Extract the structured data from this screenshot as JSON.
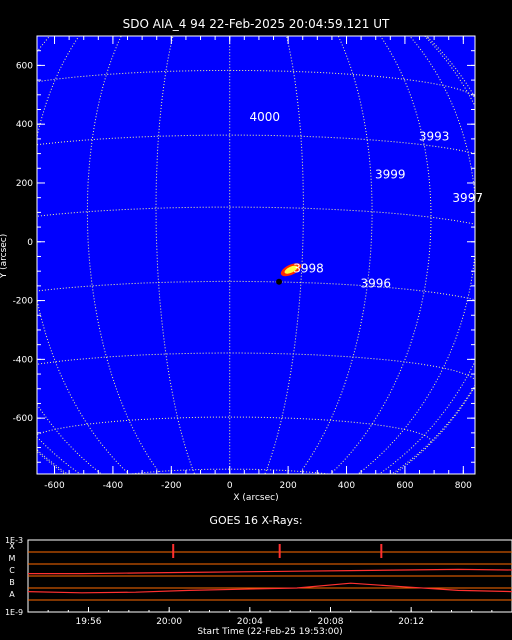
{
  "chart_data": [
    {
      "type": "scatter",
      "title": "SDO AIA_4 94 22-Feb-2025 20:04:59.121 UT",
      "xlabel": "X (arcsec)",
      "ylabel": "Y (arcsec)",
      "xlim": [
        -660,
        840
      ],
      "ylim": [
        -790,
        700
      ],
      "x_ticks": [
        "-600",
        "-400",
        "-200",
        "0",
        "200",
        "400",
        "600",
        "800"
      ],
      "y_ticks": [
        "-600",
        "-400",
        "-200",
        "0",
        "200",
        "400",
        "600"
      ],
      "grid": "heliographic lat/lon, dotted",
      "background_color": "#0000ff",
      "grid_color": "#ffff99",
      "flare_color": "#ffff40",
      "active_regions": [
        {
          "label": "4000",
          "x": 120,
          "y": 410
        },
        {
          "label": "3993",
          "x": 700,
          "y": 345
        },
        {
          "label": "3999",
          "x": 550,
          "y": 215
        },
        {
          "label": "3997",
          "x": 815,
          "y": 135
        },
        {
          "label": "3998",
          "x": 270,
          "y": -105
        },
        {
          "label": "3996",
          "x": 500,
          "y": -155
        }
      ],
      "flare_point": {
        "x": 210,
        "y": -95
      }
    },
    {
      "type": "line",
      "title": "GOES 16 X-Rays:",
      "xlabel": "Start Time (22-Feb-25 19:53:00)",
      "x_ticks": [
        "19:56",
        "20:00",
        "20:04",
        "20:08",
        "20:12"
      ],
      "left_ticks": [
        "1E-3",
        "1E-9"
      ],
      "class_labels": [
        "X",
        "M",
        "C",
        "B",
        "A"
      ],
      "series": [
        {
          "color": "#ff3030",
          "values": [
            -5.8,
            -5.8,
            -5.75,
            -5.7,
            -5.65,
            -5.6,
            -5.55,
            -5.5,
            -5.45,
            -5.5
          ]
        },
        {
          "color": "#ff3030",
          "values": [
            -7.3,
            -7.4,
            -7.35,
            -7.2,
            -7.1,
            -7.0,
            -6.6,
            -6.9,
            -7.2,
            -7.3
          ]
        }
      ],
      "markers_x": [
        0.3,
        0.52,
        0.73
      ],
      "line_color": "#ff3030",
      "class_line_color": "#ff6a00"
    }
  ]
}
